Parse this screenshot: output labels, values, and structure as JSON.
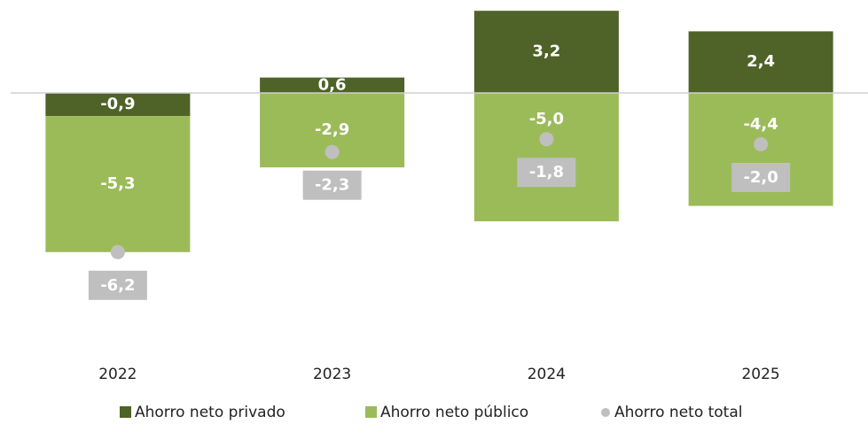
{
  "chart_data": {
    "type": "stacked_bar",
    "categories": [
      "2022",
      "2023",
      "2024",
      "2025"
    ],
    "series": [
      {
        "name": "Ahorro neto privado",
        "color": "#4f6228",
        "values": [
          -0.9,
          0.6,
          3.2,
          2.4
        ],
        "value_labels": [
          "-0,9",
          "0,6",
          "3,2",
          "2,4"
        ]
      },
      {
        "name": "Ahorro neto público",
        "color": "#9bbb59",
        "values": [
          -5.3,
          -2.9,
          -5.0,
          -4.4
        ],
        "value_labels": [
          "-5,3",
          "-2,9",
          "-5,0",
          "-4,4"
        ]
      },
      {
        "name": "Ahorro neto total",
        "color": "#bfbfbf",
        "type": "scatter",
        "values": [
          -6.2,
          -2.3,
          -1.8,
          -2.0
        ],
        "value_labels": [
          "-6,2",
          "-2,3",
          "-1,8",
          "-2,0"
        ]
      }
    ]
  }
}
